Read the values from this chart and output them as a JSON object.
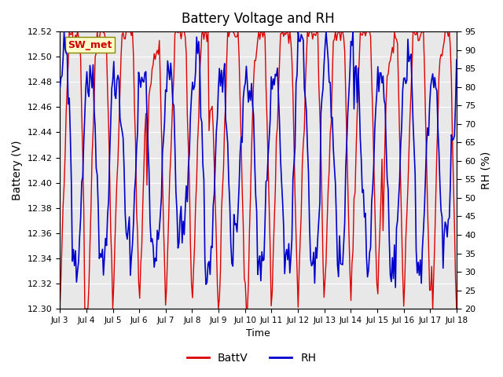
{
  "title": "Battery Voltage and RH",
  "xlabel": "Time",
  "ylabel_left": "Battery (V)",
  "ylabel_right": "RH (%)",
  "station_label": "SW_met",
  "batt_ylim": [
    12.3,
    12.52
  ],
  "rh_ylim": [
    20,
    95
  ],
  "batt_yticks": [
    12.3,
    12.32,
    12.34,
    12.36,
    12.38,
    12.4,
    12.42,
    12.44,
    12.46,
    12.48,
    12.5,
    12.52
  ],
  "rh_yticks": [
    20,
    25,
    30,
    35,
    40,
    45,
    50,
    55,
    60,
    65,
    70,
    75,
    80,
    85,
    90,
    95
  ],
  "x_tick_labels": [
    "Jul 3",
    "Jul 4",
    "Jul 5",
    "Jul 6",
    "Jul 7",
    "Jul 8",
    "Jul 9",
    "Jul 10",
    "Jul 11",
    "Jul 12",
    "Jul 13",
    "Jul 14",
    "Jul 15",
    "Jul 16",
    "Jul 17",
    "Jul 18"
  ],
  "x_tick_positions": [
    0,
    1,
    2,
    3,
    4,
    5,
    6,
    7,
    8,
    9,
    10,
    11,
    12,
    13,
    14,
    15
  ],
  "batt_color": "#dd0000",
  "rh_color": "#0000cc",
  "bg_color": "#ffffff",
  "plot_bg_color": "#e8e8e8",
  "grid_color": "#ffffff",
  "legend_batt": "BattV",
  "legend_rh": "RH"
}
